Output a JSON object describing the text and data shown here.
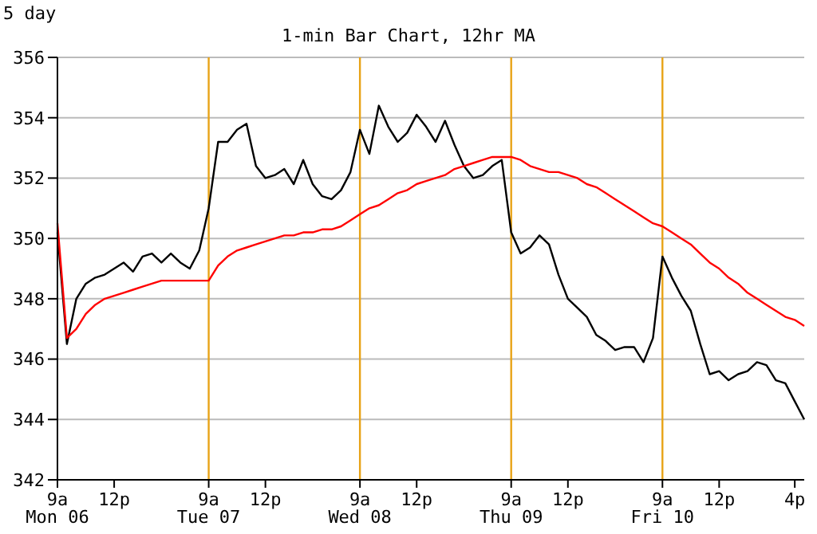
{
  "chart_data": {
    "type": "line",
    "title": "1-min Bar Chart, 12hr MA",
    "subtitle": "5 day",
    "categories": [
      "9a\nMon 06",
      null,
      null,
      null,
      null,
      null,
      "12p",
      null,
      null,
      null,
      null,
      null,
      null,
      null,
      null,
      null,
      "9a\nTue 07",
      null,
      null,
      null,
      null,
      null,
      "12p",
      null,
      null,
      null,
      null,
      null,
      null,
      null,
      null,
      null,
      "9a\nWed 08",
      null,
      null,
      null,
      null,
      null,
      "12p",
      null,
      null,
      null,
      null,
      null,
      null,
      null,
      null,
      null,
      "9a\nThu 09",
      null,
      null,
      null,
      null,
      null,
      "12p",
      null,
      null,
      null,
      null,
      null,
      null,
      null,
      null,
      null,
      "9a\nFri 10",
      null,
      null,
      null,
      null,
      null,
      "12p",
      null,
      null,
      null,
      null,
      null,
      null,
      null,
      "4p",
      null
    ],
    "ylim": [
      342,
      356
    ],
    "yticks": [
      342,
      344,
      346,
      348,
      350,
      352,
      354,
      356
    ],
    "grid": "y",
    "legend": false,
    "marker": "none",
    "line_style": "solid",
    "ref_lines": [
      {
        "axis": "x",
        "value": "9a\nTue 07",
        "color": "#e8a317"
      },
      {
        "axis": "x",
        "value": "9a\nWed 08",
        "color": "#e8a317"
      },
      {
        "axis": "x",
        "value": "9a\nThu 09",
        "color": "#e8a317"
      },
      {
        "axis": "x",
        "value": "9a\nFri 10",
        "color": "#e8a317"
      }
    ],
    "series": [
      {
        "color": "#000000",
        "values": [
          350.2,
          346.5,
          348.0,
          348.5,
          348.7,
          348.8,
          349.0,
          349.2,
          348.9,
          349.4,
          349.5,
          349.2,
          349.5,
          349.2,
          349.0,
          349.6,
          351.0,
          353.2,
          353.2,
          353.6,
          353.8,
          352.4,
          352.0,
          352.1,
          352.3,
          351.8,
          352.6,
          351.8,
          351.4,
          351.3,
          351.6,
          352.2,
          353.6,
          352.8,
          354.4,
          353.7,
          353.2,
          353.5,
          354.1,
          353.7,
          353.2,
          353.9,
          353.1,
          352.4,
          352.0,
          352.1,
          352.4,
          352.6,
          350.2,
          349.5,
          349.7,
          350.1,
          349.8,
          348.8,
          348.0,
          347.7,
          347.4,
          346.8,
          346.6,
          346.3,
          346.4,
          346.4,
          345.9,
          346.7,
          349.4,
          348.7,
          348.1,
          347.6,
          346.5,
          345.5,
          345.6,
          345.3,
          345.5,
          345.6,
          345.9,
          345.8,
          345.3,
          345.2,
          344.6,
          344.0
        ]
      },
      {
        "color": "#ff0000",
        "values": [
          350.5,
          346.7,
          347.0,
          347.5,
          347.8,
          348.0,
          348.1,
          348.2,
          348.3,
          348.4,
          348.5,
          348.6,
          348.6,
          348.6,
          348.6,
          348.6,
          348.6,
          349.1,
          349.4,
          349.6,
          349.7,
          349.8,
          349.9,
          350.0,
          350.1,
          350.1,
          350.2,
          350.2,
          350.3,
          350.3,
          350.4,
          350.6,
          350.8,
          351.0,
          351.1,
          351.3,
          351.5,
          351.6,
          351.8,
          351.9,
          352.0,
          352.1,
          352.3,
          352.4,
          352.5,
          352.6,
          352.7,
          352.7,
          352.7,
          352.6,
          352.4,
          352.3,
          352.2,
          352.2,
          352.1,
          352.0,
          351.8,
          351.7,
          351.5,
          351.3,
          351.1,
          350.9,
          350.7,
          350.5,
          350.4,
          350.2,
          350.0,
          349.8,
          349.5,
          349.2,
          349.0,
          348.7,
          348.5,
          348.2,
          348.0,
          347.8,
          347.6,
          347.4,
          347.3,
          347.1
        ]
      }
    ]
  }
}
